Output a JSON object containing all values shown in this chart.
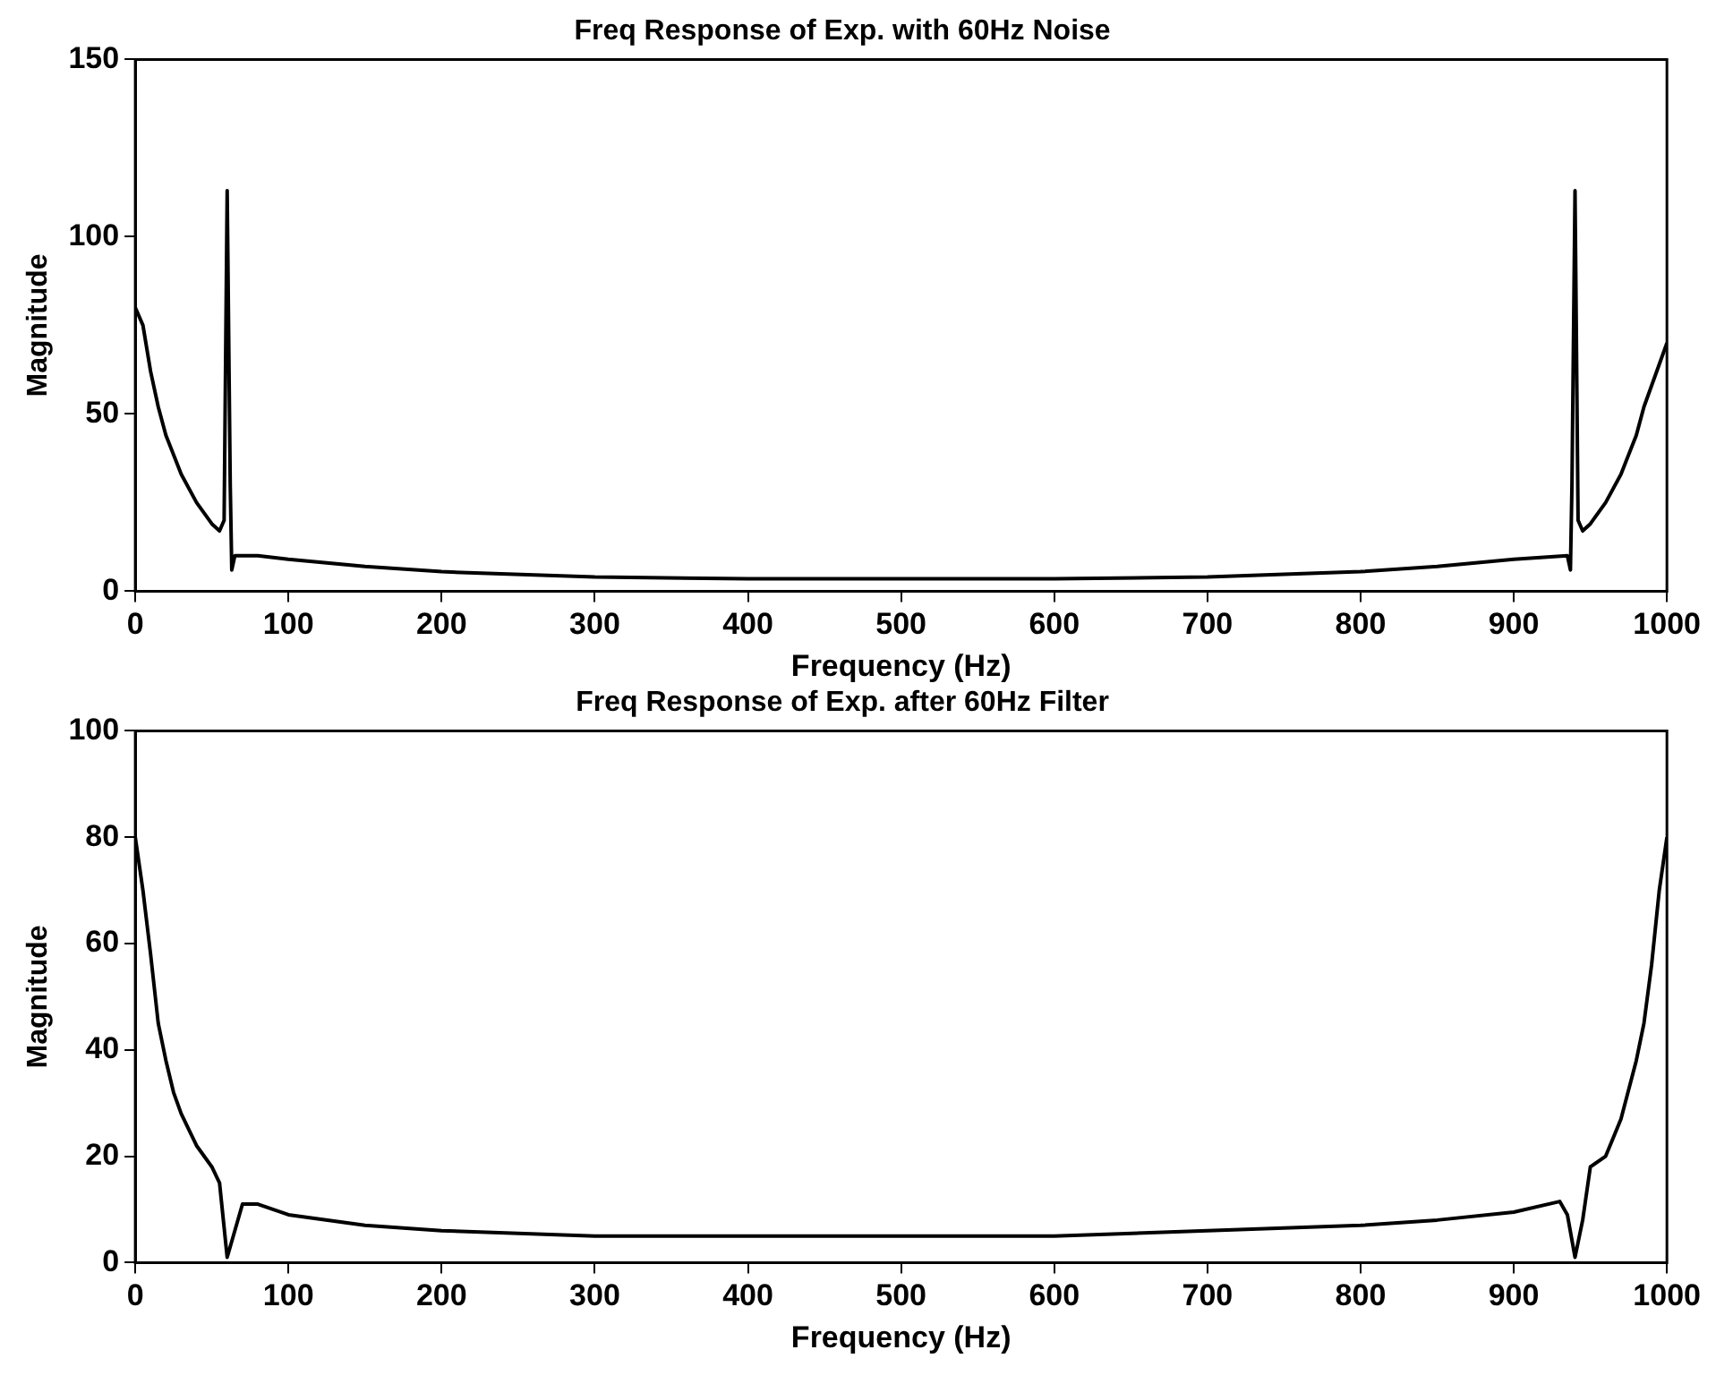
{
  "chart_data": [
    {
      "type": "line",
      "title": "Freq Response of Exp. with 60Hz Noise",
      "xlabel": "Frequency (Hz)",
      "ylabel": "Magnitude",
      "xlim": [
        0,
        1000
      ],
      "xticks": [
        0,
        100,
        200,
        300,
        400,
        500,
        600,
        700,
        800,
        900,
        1000
      ],
      "ylim": [
        0,
        150
      ],
      "yticks": [
        0,
        50,
        100,
        150
      ],
      "grid": false,
      "legend": false,
      "marker": "none",
      "line_style": "solid",
      "series": [
        {
          "color": "#000000",
          "x": [
            0,
            5,
            10,
            15,
            20,
            30,
            40,
            50,
            55,
            58,
            60,
            62,
            63,
            65,
            80,
            100,
            150,
            200,
            300,
            400,
            500,
            600,
            700,
            800,
            850,
            900,
            935,
            937,
            938,
            940,
            942,
            945,
            950,
            960,
            970,
            980,
            985,
            990,
            995,
            1000
          ],
          "values": [
            80,
            75,
            62,
            52,
            44,
            33,
            25,
            19,
            17,
            20,
            113,
            30,
            6,
            10,
            10,
            9,
            7,
            5.5,
            4,
            3.5,
            3.5,
            3.5,
            4,
            5.5,
            7,
            9,
            10,
            6,
            30,
            113,
            20,
            17,
            19,
            25,
            33,
            44,
            52,
            58,
            64,
            70
          ]
        }
      ]
    },
    {
      "type": "line",
      "title": "Freq Response of Exp. after 60Hz Filter",
      "xlabel": "Frequency (Hz)",
      "ylabel": "Magnitude",
      "xlim": [
        0,
        1000
      ],
      "xticks": [
        0,
        100,
        200,
        300,
        400,
        500,
        600,
        700,
        800,
        900,
        1000
      ],
      "ylim": [
        0,
        100
      ],
      "yticks": [
        0,
        20,
        40,
        60,
        80,
        100
      ],
      "grid": false,
      "legend": false,
      "marker": "none",
      "line_style": "solid",
      "series": [
        {
          "color": "#000000",
          "x": [
            0,
            5,
            10,
            15,
            20,
            25,
            30,
            40,
            50,
            55,
            60,
            65,
            70,
            80,
            100,
            150,
            200,
            300,
            400,
            500,
            600,
            700,
            800,
            850,
            900,
            930,
            935,
            940,
            945,
            950,
            960,
            970,
            980,
            985,
            990,
            995,
            1000
          ],
          "values": [
            80,
            70,
            58,
            45,
            38,
            32,
            28,
            22,
            18,
            15,
            1,
            6,
            11,
            11,
            9,
            7,
            6,
            5,
            5,
            5,
            5,
            6,
            7,
            8,
            9.5,
            11.5,
            9,
            1,
            8,
            18,
            20,
            27,
            38,
            45,
            56,
            70,
            80
          ]
        }
      ]
    }
  ]
}
